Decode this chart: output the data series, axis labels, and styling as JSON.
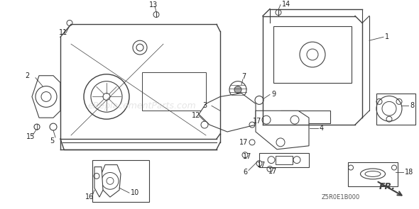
{
  "title": "",
  "bg_color": "#ffffff",
  "line_color": "#404040",
  "label_color": "#222222",
  "watermark": "eReplacementParts.com",
  "watermark_color": "#cccccc",
  "part_code": "Z5R0E1B000",
  "fr_label": "FR.",
  "fig_width": 5.9,
  "fig_height": 2.95,
  "dpi": 100
}
